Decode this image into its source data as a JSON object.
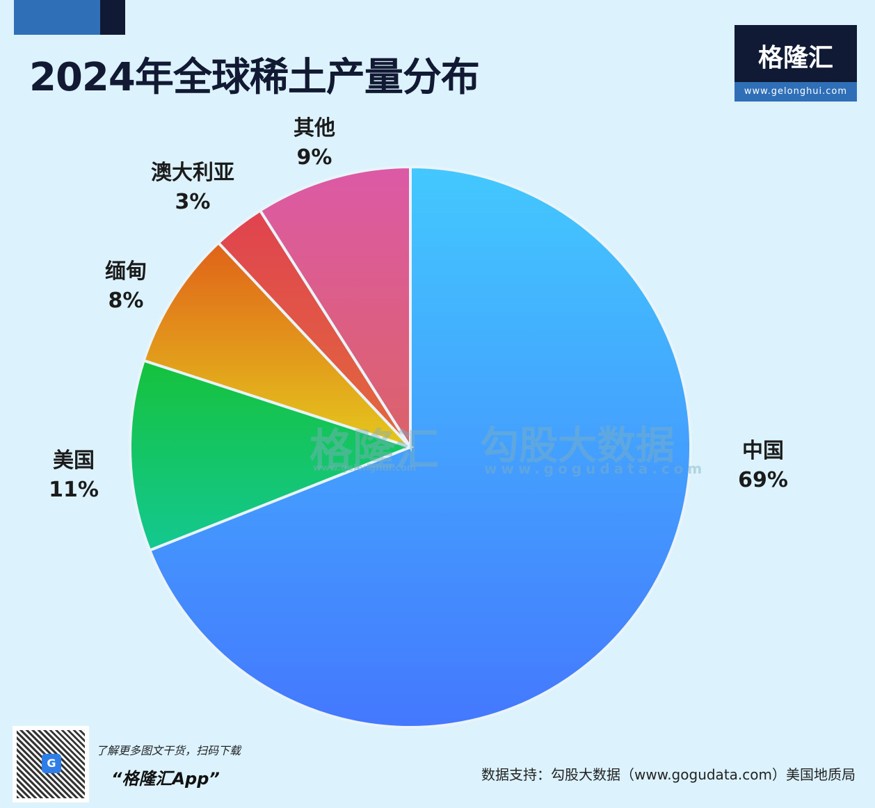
{
  "header": {
    "title": "2024年全球稀土产量分布"
  },
  "logo": {
    "name": "格隆汇",
    "url": "www.gelonghui.com"
  },
  "watermark": {
    "left": "格隆汇",
    "left_url": "www.gelonghui.com",
    "right": "勾股大数据",
    "right_url": "www.gogudata.com"
  },
  "chart_data": {
    "type": "pie",
    "title": "2024年全球稀土产量分布",
    "start_angle": "top, clockwise",
    "slices": [
      {
        "label": "中国",
        "value": 69,
        "pct": "69%",
        "colors": [
          "#43c8fe",
          "#4478fe"
        ]
      },
      {
        "label": "美国",
        "value": 11,
        "pct": "11%",
        "colors": [
          "#15c23c",
          "#14c891"
        ]
      },
      {
        "label": "缅甸",
        "value": 8,
        "pct": "8%",
        "colors": [
          "#e0621a",
          "#e4c81c"
        ]
      },
      {
        "label": "澳大利亚",
        "value": 3,
        "pct": "3%",
        "colors": [
          "#e0434f",
          "#e26a3c"
        ]
      },
      {
        "label": "其他",
        "value": 9,
        "pct": "9%",
        "colors": [
          "#dc5aa6",
          "#dc6268"
        ]
      }
    ]
  },
  "footer": {
    "promo_line": "了解更多图文干货，扫码下载",
    "promo_app": "“格隆汇App”",
    "qr_logo": "G",
    "source": "数据支持：勾股大数据（www.gogudata.com）美国地质局"
  }
}
